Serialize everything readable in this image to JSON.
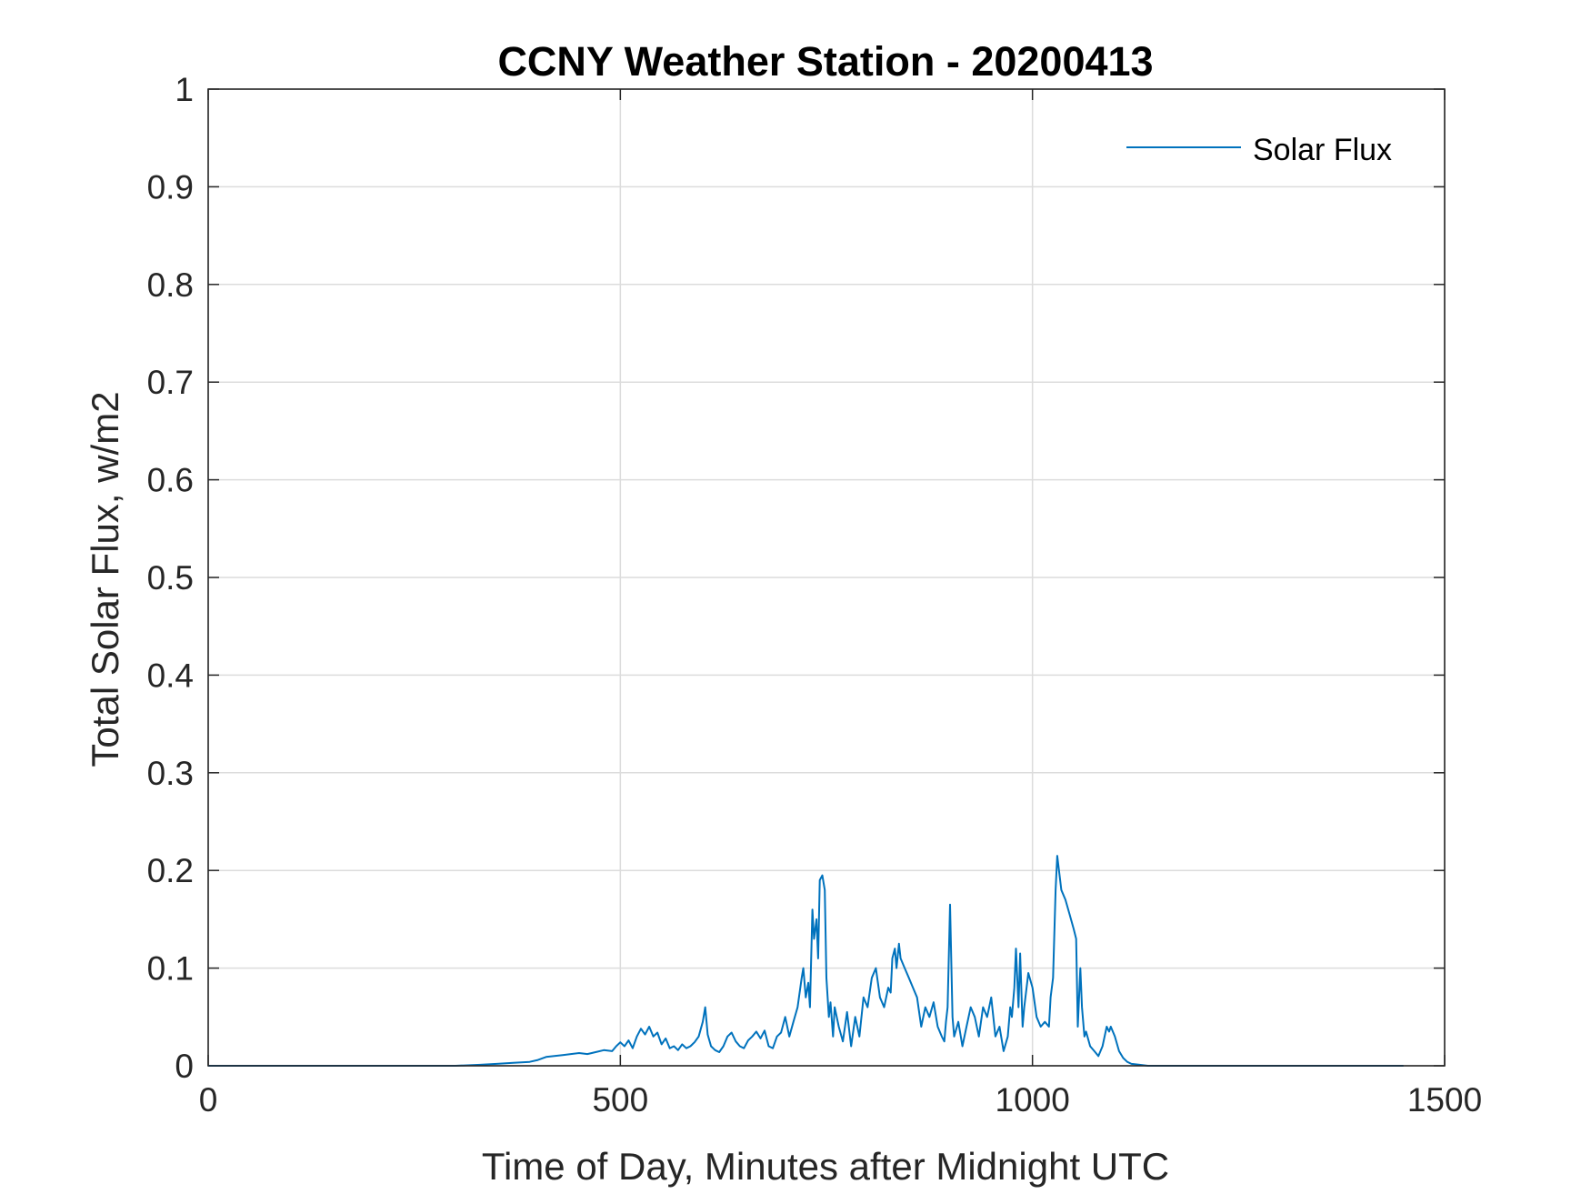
{
  "chart_data": {
    "type": "line",
    "title": "CCNY Weather Station - 20200413",
    "xlabel": "Time of Day, Minutes after Midnight UTC",
    "ylabel": "Total Solar Flux, w/m2",
    "xlim": [
      0,
      1500
    ],
    "ylim": [
      0,
      1
    ],
    "xticks": [
      0,
      500,
      1000,
      1500
    ],
    "xtick_labels": [
      "0",
      "500",
      "1000",
      "1500"
    ],
    "yticks": [
      0,
      0.1,
      0.2,
      0.3,
      0.4,
      0.5,
      0.6,
      0.7,
      0.8,
      0.9,
      1
    ],
    "ytick_labels": [
      "0",
      "0.1",
      "0.2",
      "0.3",
      "0.4",
      "0.5",
      "0.6",
      "0.7",
      "0.8",
      "0.9",
      "1"
    ],
    "grid": true,
    "legend": {
      "position": "top-right",
      "entries": [
        "Solar Flux"
      ]
    },
    "series": [
      {
        "name": "Solar Flux",
        "color": "#0072BD",
        "x": [
          0,
          100,
          200,
          300,
          330,
          350,
          370,
          390,
          400,
          410,
          420,
          430,
          440,
          450,
          460,
          470,
          480,
          490,
          495,
          500,
          505,
          510,
          515,
          520,
          525,
          530,
          535,
          540,
          545,
          550,
          555,
          560,
          565,
          570,
          575,
          580,
          585,
          590,
          595,
          600,
          603,
          606,
          610,
          615,
          620,
          625,
          630,
          635,
          640,
          645,
          650,
          655,
          660,
          665,
          670,
          675,
          680,
          685,
          690,
          695,
          700,
          705,
          710,
          715,
          720,
          722,
          725,
          728,
          730,
          733,
          735,
          738,
          740,
          742,
          745,
          748,
          750,
          753,
          755,
          758,
          760,
          765,
          770,
          775,
          780,
          785,
          790,
          795,
          800,
          805,
          810,
          815,
          820,
          825,
          828,
          830,
          833,
          835,
          838,
          840,
          845,
          850,
          855,
          860,
          865,
          870,
          875,
          880,
          885,
          890,
          893,
          895,
          897,
          900,
          903,
          905,
          910,
          915,
          920,
          925,
          930,
          935,
          940,
          945,
          950,
          955,
          960,
          965,
          970,
          973,
          975,
          978,
          980,
          983,
          985,
          988,
          990,
          995,
          1000,
          1005,
          1010,
          1015,
          1020,
          1022,
          1025,
          1028,
          1030,
          1035,
          1040,
          1045,
          1050,
          1053,
          1055,
          1058,
          1060,
          1063,
          1065,
          1070,
          1075,
          1080,
          1085,
          1090,
          1093,
          1095,
          1100,
          1105,
          1110,
          1115,
          1120,
          1130,
          1140,
          1200,
          1300,
          1400,
          1450
        ],
        "y": [
          0,
          0,
          0,
          0,
          0.001,
          0.002,
          0.003,
          0.004,
          0.006,
          0.009,
          0.01,
          0.011,
          0.012,
          0.013,
          0.012,
          0.014,
          0.016,
          0.015,
          0.02,
          0.024,
          0.02,
          0.026,
          0.018,
          0.03,
          0.038,
          0.032,
          0.04,
          0.03,
          0.034,
          0.022,
          0.028,
          0.018,
          0.02,
          0.016,
          0.022,
          0.018,
          0.02,
          0.024,
          0.03,
          0.045,
          0.06,
          0.032,
          0.02,
          0.016,
          0.014,
          0.02,
          0.03,
          0.034,
          0.025,
          0.02,
          0.018,
          0.026,
          0.03,
          0.035,
          0.028,
          0.036,
          0.02,
          0.018,
          0.03,
          0.034,
          0.05,
          0.03,
          0.045,
          0.06,
          0.09,
          0.1,
          0.07,
          0.085,
          0.06,
          0.16,
          0.13,
          0.15,
          0.11,
          0.19,
          0.195,
          0.18,
          0.09,
          0.05,
          0.065,
          0.03,
          0.06,
          0.04,
          0.025,
          0.055,
          0.02,
          0.05,
          0.03,
          0.07,
          0.06,
          0.09,
          0.1,
          0.07,
          0.06,
          0.08,
          0.075,
          0.11,
          0.12,
          0.1,
          0.125,
          0.11,
          0.1,
          0.09,
          0.08,
          0.07,
          0.04,
          0.06,
          0.05,
          0.065,
          0.04,
          0.03,
          0.025,
          0.045,
          0.06,
          0.165,
          0.05,
          0.03,
          0.045,
          0.02,
          0.04,
          0.06,
          0.05,
          0.03,
          0.06,
          0.05,
          0.07,
          0.03,
          0.04,
          0.015,
          0.03,
          0.06,
          0.05,
          0.08,
          0.12,
          0.06,
          0.115,
          0.04,
          0.06,
          0.095,
          0.08,
          0.05,
          0.04,
          0.045,
          0.04,
          0.07,
          0.09,
          0.18,
          0.215,
          0.18,
          0.17,
          0.155,
          0.14,
          0.13,
          0.04,
          0.1,
          0.06,
          0.03,
          0.035,
          0.02,
          0.015,
          0.01,
          0.02,
          0.04,
          0.035,
          0.04,
          0.03,
          0.015,
          0.008,
          0.004,
          0.002,
          0.001,
          0,
          0,
          0,
          0,
          0
        ]
      }
    ]
  }
}
